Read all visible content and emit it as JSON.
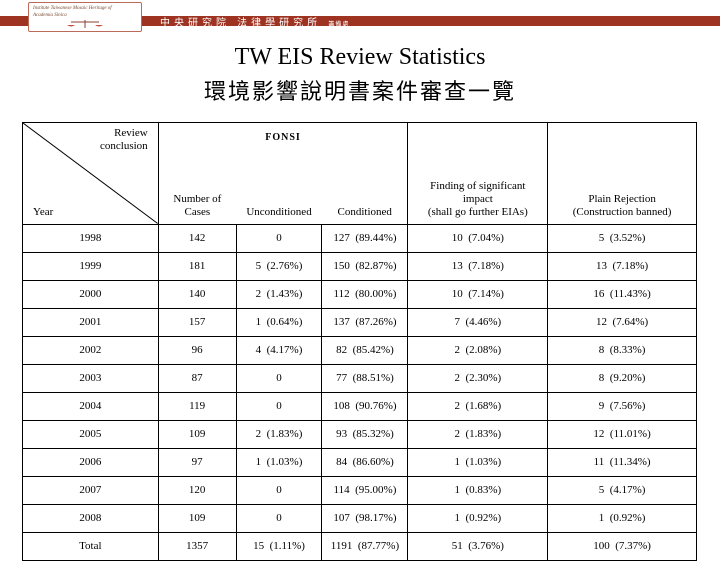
{
  "banner": {
    "logo_line1": "Institute Taiwanese Mosaic Heritage of",
    "logo_line2": "Academia Sinica",
    "org_text": "中央研究院 法律學研究所",
    "org_small": "籌備處",
    "stripe_color": "#9e3322"
  },
  "title_en": "TW EIS Review Statistics",
  "title_zh": "環境影響說明書案件審查一覽",
  "table": {
    "diag_label_line1": "Review",
    "diag_label_line2": "conclusion",
    "diag_label_year": "Year",
    "fonsi_label": "FONSI",
    "col_cases_line1": "Number of",
    "col_cases_line2": "Cases",
    "col_unconditioned": "Unconditioned",
    "col_conditioned": "Conditioned",
    "col_significant_line1": "Finding of significant",
    "col_significant_line2": "impact",
    "col_significant_line3": "(shall go further EIAs)",
    "col_rejection_line1": "Plain Rejection",
    "col_rejection_line2": "(Construction banned)",
    "rows": [
      {
        "year": "1998",
        "cases": "142",
        "uncond": "0",
        "cond": "127  (89.44%)",
        "sig": "10  (7.04%)",
        "rej": "5  (3.52%)"
      },
      {
        "year": "1999",
        "cases": "181",
        "uncond": "5  (2.76%)",
        "cond": "150  (82.87%)",
        "sig": "13  (7.18%)",
        "rej": "13  (7.18%)"
      },
      {
        "year": "2000",
        "cases": "140",
        "uncond": "2  (1.43%)",
        "cond": "112  (80.00%)",
        "sig": "10  (7.14%)",
        "rej": "16  (11.43%)"
      },
      {
        "year": "2001",
        "cases": "157",
        "uncond": "1  (0.64%)",
        "cond": "137  (87.26%)",
        "sig": "7  (4.46%)",
        "rej": "12  (7.64%)"
      },
      {
        "year": "2002",
        "cases": "96",
        "uncond": "4  (4.17%)",
        "cond": "82  (85.42%)",
        "sig": "2  (2.08%)",
        "rej": "8  (8.33%)"
      },
      {
        "year": "2003",
        "cases": "87",
        "uncond": "0",
        "cond": "77  (88.51%)",
        "sig": "2  (2.30%)",
        "rej": "8  (9.20%)"
      },
      {
        "year": "2004",
        "cases": "119",
        "uncond": "0",
        "cond": "108  (90.76%)",
        "sig": "2  (1.68%)",
        "rej": "9  (7.56%)"
      },
      {
        "year": "2005",
        "cases": "109",
        "uncond": "2  (1.83%)",
        "cond": "93  (85.32%)",
        "sig": "2  (1.83%)",
        "rej": "12  (11.01%)"
      },
      {
        "year": "2006",
        "cases": "97",
        "uncond": "1  (1.03%)",
        "cond": "84  (86.60%)",
        "sig": "1  (1.03%)",
        "rej": "11  (11.34%)"
      },
      {
        "year": "2007",
        "cases": "120",
        "uncond": "0",
        "cond": "114  (95.00%)",
        "sig": "1  (0.83%)",
        "rej": "5  (4.17%)"
      },
      {
        "year": "2008",
        "cases": "109",
        "uncond": "0",
        "cond": "107  (98.17%)",
        "sig": "1  (0.92%)",
        "rej": "1  (0.92%)"
      },
      {
        "year": "Total",
        "cases": "1357",
        "uncond": "15  (1.11%)",
        "cond": "1191  (87.77%)",
        "sig": "51  (3.76%)",
        "rej": "100  (7.37%)"
      }
    ]
  }
}
